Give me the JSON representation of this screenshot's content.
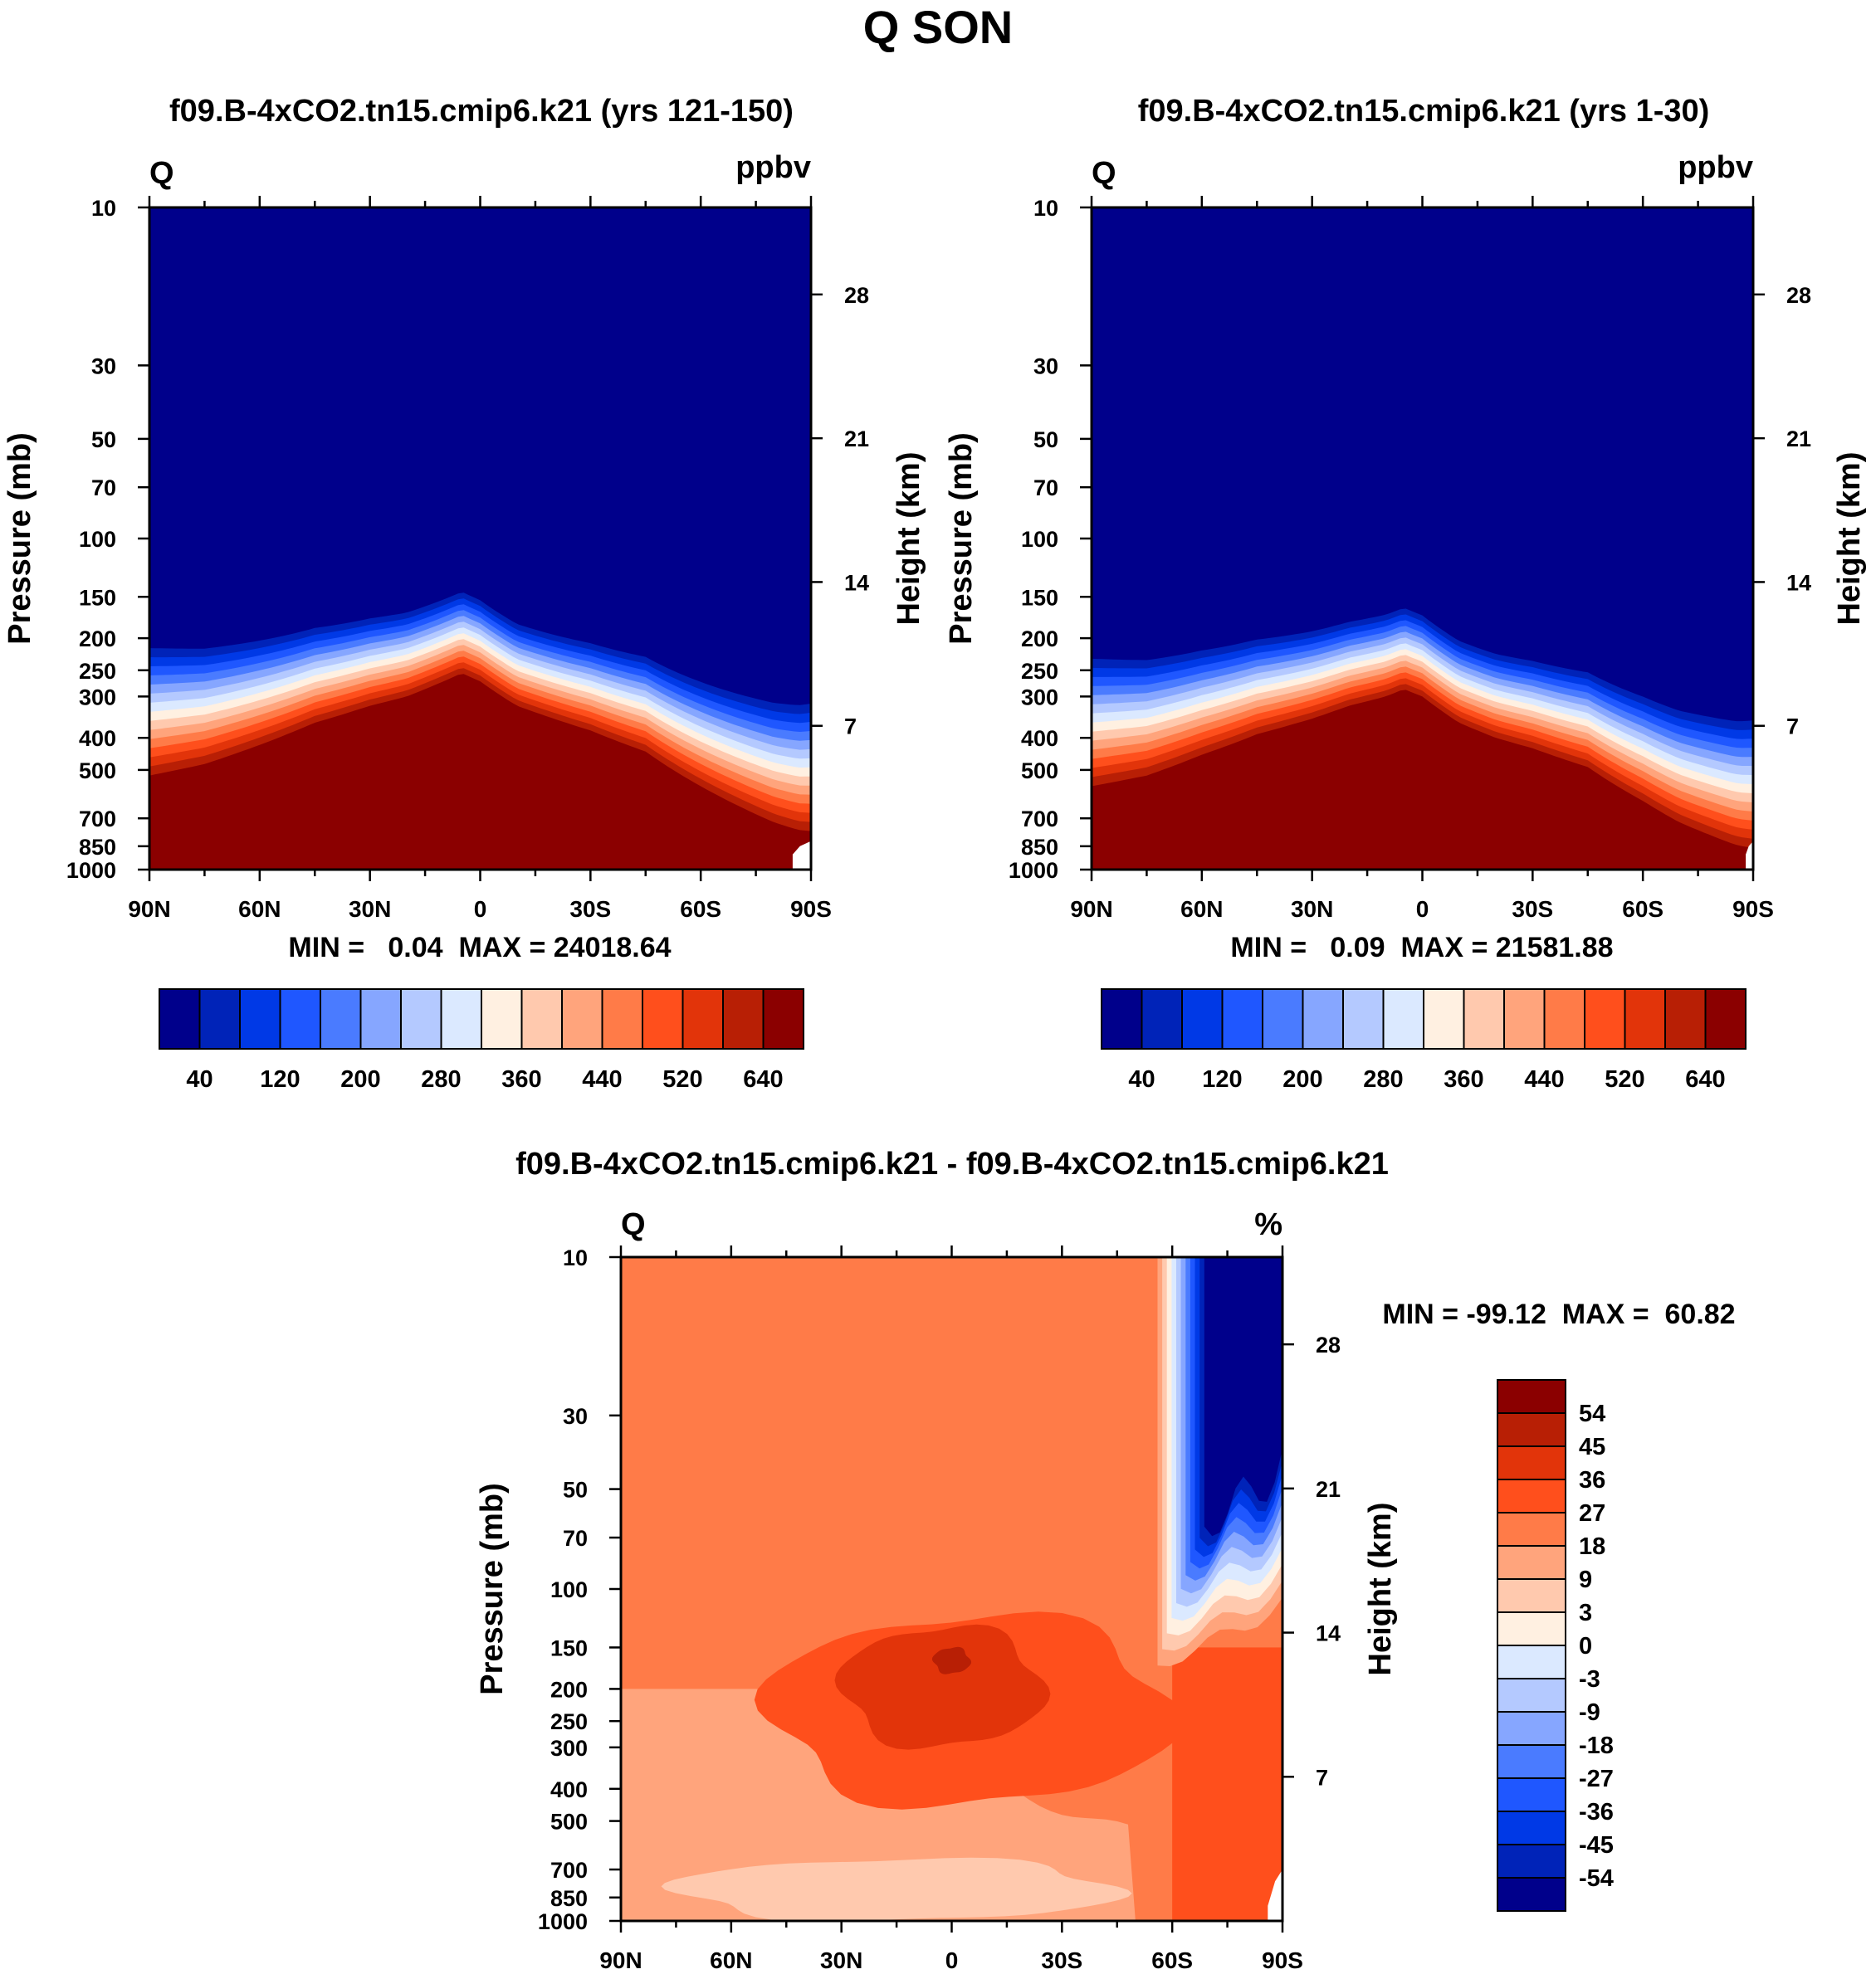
{
  "figure_title": "Q SON",
  "colors": {
    "abs_palette": [
      "#00008b",
      "#0023b8",
      "#0039e6",
      "#1f57ff",
      "#4a7bff",
      "#86a6ff",
      "#b4c9ff",
      "#dbe9ff",
      "#fff0e1",
      "#ffc9ae",
      "#ffa47c",
      "#ff7b48",
      "#ff4f1c",
      "#e2340a",
      "#b81f05",
      "#8b0000"
    ],
    "diff_palette": [
      "#00008b",
      "#0023b8",
      "#0039e6",
      "#1f57ff",
      "#4a7bff",
      "#86a6ff",
      "#b4c9ff",
      "#dbe9ff",
      "#fff0e1",
      "#ffc9ae",
      "#ffa47c",
      "#ff7b48",
      "#ff4f1c",
      "#e2340a",
      "#b81f05",
      "#8b0000"
    ],
    "missing": "#ffffff"
  },
  "chart_data": [
    {
      "type": "heatmap",
      "id": "panel1",
      "title": "f09.B-4xCO2.tn15.cmip6.k21 (yrs 121-150)",
      "variable_label": "Q",
      "units_label": "ppbv",
      "ylabel": "Pressure (mb)",
      "ylabel_right": "Height (km)",
      "x_ticks": [
        "90N",
        "60N",
        "30N",
        "0",
        "30S",
        "60S",
        "90S"
      ],
      "x_values": [
        90,
        60,
        30,
        0,
        -30,
        -60,
        -90
      ],
      "y_ticks": [
        "10",
        "30",
        "50",
        "70",
        "100",
        "150",
        "200",
        "250",
        "300",
        "400",
        "500",
        "700",
        "850",
        "1000"
      ],
      "y_values": [
        10,
        30,
        50,
        70,
        100,
        150,
        200,
        250,
        300,
        400,
        500,
        700,
        850,
        1000
      ],
      "height_ticks": [
        "28",
        "21",
        "14",
        "7"
      ],
      "height_values": [
        28,
        21,
        14,
        7
      ],
      "ylim": [
        10,
        1000
      ],
      "min_max_text": "MIN =   0.04  MAX = 24018.64",
      "min": 0.04,
      "max": 24018.64,
      "colorbar_labels": [
        "40",
        "120",
        "200",
        "280",
        "360",
        "440",
        "520",
        "640"
      ],
      "tropopause_profile": {
        "lat": [
          90,
          75,
          60,
          45,
          30,
          20,
          10,
          5,
          0,
          -10,
          -20,
          -30,
          -45,
          -60,
          -70,
          -75,
          -80,
          -85,
          -87,
          -90
        ],
        "p_mb": [
          520,
          480,
          420,
          360,
          320,
          300,
          270,
          255,
          270,
          320,
          350,
          380,
          440,
          560,
          640,
          680,
          720,
          750,
          760,
          765
        ]
      },
      "missing_near_surface_lats": [
        -85,
        -90
      ]
    },
    {
      "type": "heatmap",
      "id": "panel2",
      "title": "f09.B-4xCO2.tn15.cmip6.k21 (yrs 1-30)",
      "variable_label": "Q",
      "units_label": "ppbv",
      "ylabel": "Pressure (mb)",
      "ylabel_right": "Height (km)",
      "x_ticks": [
        "90N",
        "60N",
        "30N",
        "0",
        "30S",
        "60S",
        "90S"
      ],
      "x_values": [
        90,
        60,
        30,
        0,
        -30,
        -60,
        -90
      ],
      "y_ticks": [
        "10",
        "30",
        "50",
        "70",
        "100",
        "150",
        "200",
        "250",
        "300",
        "400",
        "500",
        "700",
        "850",
        "1000"
      ],
      "y_values": [
        10,
        30,
        50,
        70,
        100,
        150,
        200,
        250,
        300,
        400,
        500,
        700,
        850,
        1000
      ],
      "height_ticks": [
        "28",
        "21",
        "14",
        "7"
      ],
      "height_values": [
        28,
        21,
        14,
        7
      ],
      "ylim": [
        10,
        1000
      ],
      "min_max_text": "MIN =   0.09  MAX = 21581.88",
      "min": 0.09,
      "max": 21581.88,
      "colorbar_labels": [
        "40",
        "120",
        "200",
        "280",
        "360",
        "440",
        "520",
        "640"
      ],
      "tropopause_profile": {
        "lat": [
          90,
          75,
          60,
          45,
          30,
          20,
          10,
          5,
          0,
          -10,
          -20,
          -30,
          -45,
          -60,
          -70,
          -75,
          -80,
          -85,
          -87,
          -90
        ],
        "p_mb": [
          560,
          520,
          450,
          390,
          350,
          320,
          300,
          285,
          300,
          360,
          400,
          430,
          490,
          620,
          720,
          760,
          800,
          840,
          850,
          860
        ]
      },
      "missing_near_surface_lats": [
        -88,
        -90
      ]
    },
    {
      "type": "heatmap",
      "id": "panel3",
      "title": "f09.B-4xCO2.tn15.cmip6.k21 - f09.B-4xCO2.tn15.cmip6.k21",
      "variable_label": "Q",
      "units_label": "%",
      "ylabel": "Pressure (mb)",
      "ylabel_right": "Height (km)",
      "x_ticks": [
        "90N",
        "60N",
        "30N",
        "0",
        "30S",
        "60S",
        "90S"
      ],
      "x_values": [
        90,
        60,
        30,
        0,
        -30,
        -60,
        -90
      ],
      "y_ticks": [
        "10",
        "30",
        "50",
        "70",
        "100",
        "150",
        "200",
        "250",
        "300",
        "400",
        "500",
        "700",
        "850",
        "1000"
      ],
      "y_values": [
        10,
        30,
        50,
        70,
        100,
        150,
        200,
        250,
        300,
        400,
        500,
        700,
        850,
        1000
      ],
      "height_ticks": [
        "28",
        "21",
        "14",
        "7"
      ],
      "height_values": [
        28,
        21,
        14,
        7
      ],
      "ylim": [
        10,
        1000
      ],
      "min_max_text": "MIN = -99.12  MAX =  60.82",
      "min": -99.12,
      "max": 60.82,
      "colorbar_labels": [
        "54",
        "45",
        "36",
        "27",
        "18",
        "9",
        "3",
        "0",
        "-3",
        "-9",
        "-18",
        "-27",
        "-36",
        "-45",
        "-54"
      ],
      "colorbar_levels": [
        -54,
        -45,
        -36,
        -27,
        -18,
        -9,
        -3,
        0,
        3,
        9,
        18,
        27,
        36,
        45,
        54
      ],
      "background_value": 22,
      "regions": [
        {
          "name": "lower-troposphere",
          "value": 12,
          "lat_range": [
            90,
            -50
          ],
          "p_range": [
            200,
            1000
          ]
        },
        {
          "name": "low-level-minimum",
          "value": 6,
          "lat_range": [
            75,
            -45
          ],
          "p_range": [
            650,
            1000
          ]
        },
        {
          "name": "upper-trop-maximum",
          "value": 32,
          "lat_range": [
            50,
            -60
          ],
          "p_range": [
            120,
            450
          ]
        },
        {
          "name": "tropical-core",
          "value": 40,
          "lat_range": [
            30,
            -25
          ],
          "p_range": [
            130,
            300
          ]
        },
        {
          "name": "tropical-peak",
          "value": 49,
          "lat_range": [
            5,
            -5
          ],
          "p_range": [
            150,
            180
          ]
        },
        {
          "name": "south-polar-lower",
          "value": 30,
          "lat_range": [
            -60,
            -90
          ],
          "p_range": [
            150,
            1000
          ]
        },
        {
          "name": "south-polar-stratosphere",
          "value": -60,
          "lat_range": [
            -62,
            -90
          ],
          "p_range": [
            10,
            60
          ]
        }
      ],
      "missing_near_surface_lats": [
        -86,
        -90
      ]
    }
  ]
}
